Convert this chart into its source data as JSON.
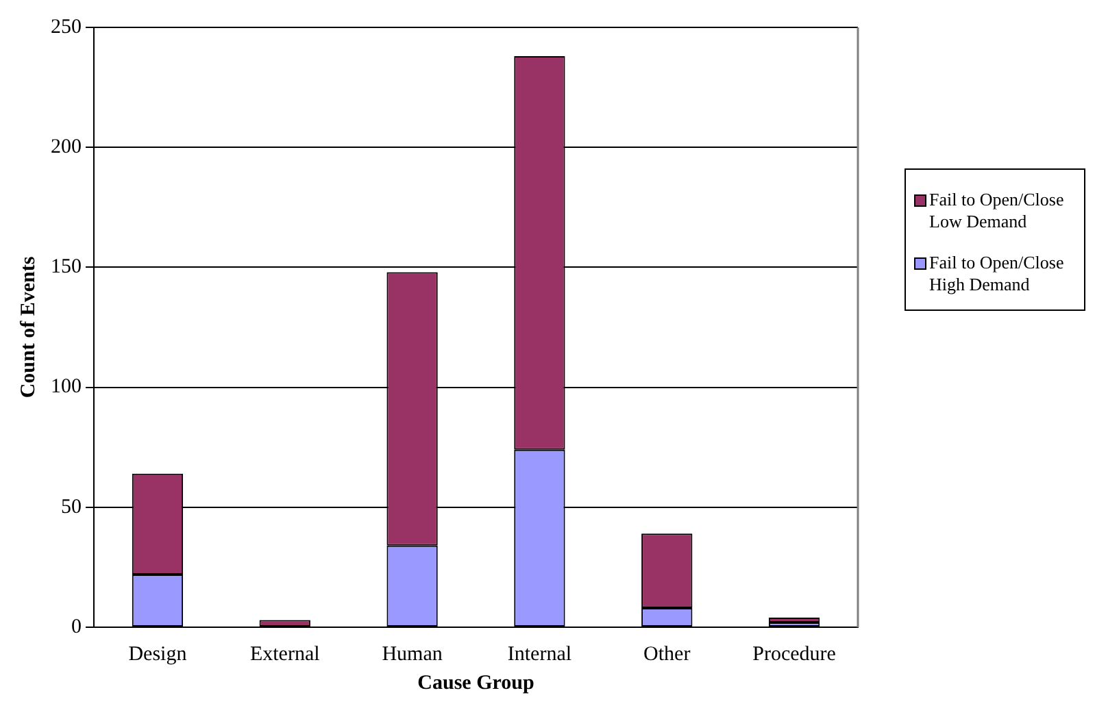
{
  "chart_data": {
    "type": "bar",
    "stacked": true,
    "xlabel": "Cause Group",
    "ylabel": "Count of Events",
    "categories": [
      "Design",
      "External",
      "Human",
      "Internal",
      "Other",
      "Procedure"
    ],
    "series": [
      {
        "name": "Fail to Open/Close High Demand",
        "color": "#9999ff",
        "values": [
          22,
          0,
          34,
          74,
          8,
          2
        ]
      },
      {
        "name": "Fail to Open/Close Low Demand",
        "color": "#993366",
        "values": [
          42,
          3,
          114,
          164,
          31,
          2
        ]
      }
    ],
    "ylim": [
      0,
      250
    ],
    "yticks": [
      0,
      50,
      100,
      150,
      200,
      250
    ],
    "grid": "y",
    "legend": "right"
  }
}
